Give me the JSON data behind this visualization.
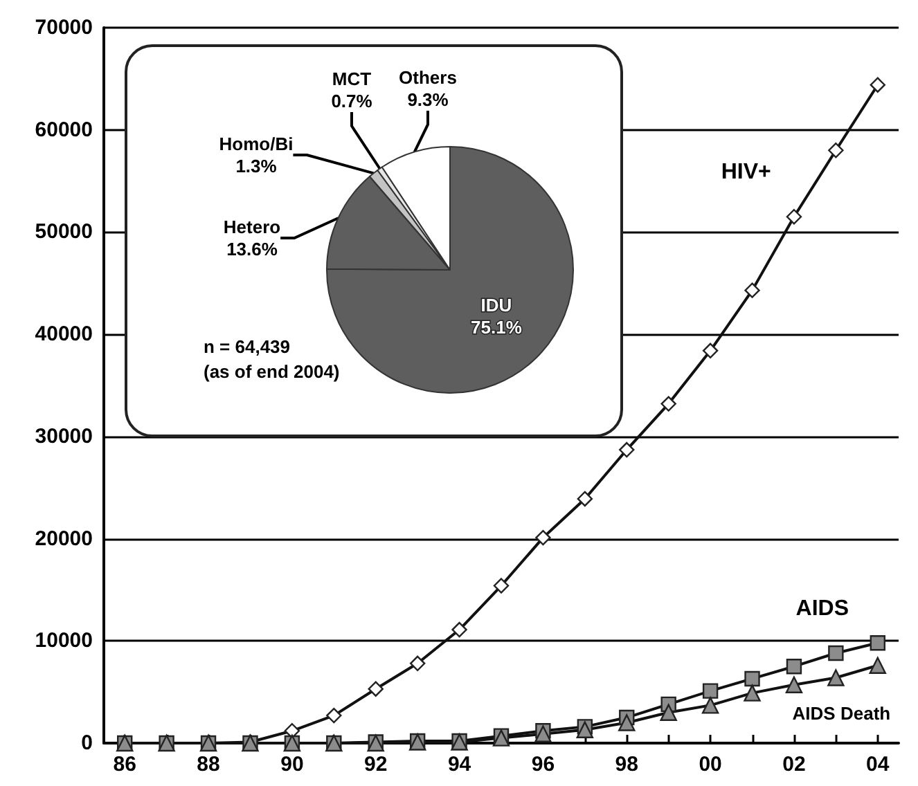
{
  "chart_data": [
    {
      "type": "line",
      "categories": [
        "86",
        null,
        "88",
        null,
        "90",
        null,
        "92",
        null,
        "94",
        null,
        "96",
        null,
        "98",
        null,
        "00",
        null,
        "02",
        null,
        "04"
      ],
      "series": [
        {
          "name": "HIV+",
          "color": "#ffffff",
          "marker": "diamond",
          "values": [
            0,
            0,
            0,
            100,
            1200,
            2700,
            5300,
            7800,
            11100,
            15400,
            20100,
            23900,
            28700,
            33200,
            38400,
            44300,
            51500,
            58000,
            64400
          ]
        },
        {
          "name": "AIDS",
          "color": "#8c8c8c",
          "marker": "square",
          "values": [
            0,
            0,
            0,
            0,
            0,
            0,
            100,
            200,
            200,
            700,
            1200,
            1600,
            2500,
            3800,
            5100,
            6300,
            7500,
            8800,
            9800
          ]
        },
        {
          "name": "AIDS Death",
          "color": "#8c8c8c",
          "marker": "triangle",
          "values": [
            0,
            0,
            0,
            0,
            0,
            0,
            0,
            100,
            100,
            500,
            900,
            1300,
            2000,
            3000,
            3700,
            4900,
            5700,
            6400,
            7600
          ]
        }
      ],
      "ylim": [
        0,
        70000
      ],
      "yticks": [
        0,
        10000,
        20000,
        30000,
        40000,
        50000,
        60000,
        70000
      ],
      "grid": "y",
      "legend": false,
      "line_style": "solid"
    },
    {
      "type": "pie",
      "categories": [
        "IDU",
        "Hetero",
        "Homo/Bi",
        "MCT",
        "Others"
      ],
      "values": [
        75.1,
        13.6,
        1.3,
        0.7,
        9.3
      ],
      "colors": [
        "#5e5e5e",
        "#5e5e5e",
        "#c4c4c4",
        "#e6e6e6",
        "#ffffff"
      ],
      "value_labels": [
        "75.1%",
        "13.6%",
        "1.3%",
        "0.7%",
        "9.3%"
      ],
      "annotations": [
        "n = 64,439",
        "(as of end 2004)"
      ]
    }
  ]
}
